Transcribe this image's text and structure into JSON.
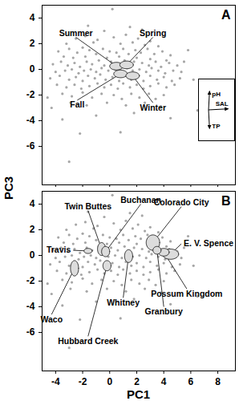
{
  "chart_data": [
    {
      "type": "scatter",
      "label": "A",
      "color": "#a6a6a6",
      "marker": "circle",
      "xlim": [
        -5,
        9.3
      ],
      "ylim": [
        -9,
        5
      ],
      "xticks": [
        -4,
        -2,
        0,
        2,
        4,
        6,
        8
      ],
      "yticks": [
        4,
        2,
        0,
        -2,
        -4,
        -6
      ],
      "tick_labels": "y",
      "points": [
        [
          -2.5,
          2.4
        ],
        [
          -1.8,
          2.6
        ],
        [
          -0.9,
          2.3
        ],
        [
          0.3,
          2.5
        ],
        [
          1.2,
          2.7
        ],
        [
          2.1,
          2.4
        ],
        [
          3.0,
          2.2
        ],
        [
          -3.2,
          2.0
        ],
        [
          -1.2,
          2.1
        ],
        [
          0.8,
          2.0
        ],
        [
          1.7,
          2.1
        ],
        [
          2.6,
          1.9
        ],
        [
          3.6,
          1.8
        ],
        [
          -3.8,
          1.4
        ],
        [
          -3.0,
          1.6
        ],
        [
          -2.4,
          1.3
        ],
        [
          -2.0,
          1.7
        ],
        [
          -1.5,
          1.5
        ],
        [
          -1.0,
          1.2
        ],
        [
          -0.5,
          1.6
        ],
        [
          0.0,
          1.4
        ],
        [
          0.5,
          1.3
        ],
        [
          1.0,
          1.6
        ],
        [
          1.4,
          1.2
        ],
        [
          1.9,
          1.5
        ],
        [
          2.3,
          1.3
        ],
        [
          2.8,
          1.6
        ],
        [
          3.3,
          1.2
        ],
        [
          3.9,
          1.4
        ],
        [
          4.5,
          1.1
        ],
        [
          -3.4,
          1.0
        ],
        [
          -2.7,
          0.9
        ],
        [
          -1.8,
          1.0
        ],
        [
          -0.2,
          0.9
        ],
        [
          0.7,
          1.0
        ],
        [
          2.0,
          0.9
        ],
        [
          3.0,
          0.8
        ],
        [
          4.2,
          0.7
        ],
        [
          -4.2,
          0.4
        ],
        [
          -3.6,
          0.6
        ],
        [
          -3.1,
          0.3
        ],
        [
          -2.6,
          0.5
        ],
        [
          -2.2,
          0.2
        ],
        [
          -1.7,
          0.6
        ],
        [
          -1.3,
          0.4
        ],
        [
          -0.8,
          0.7
        ],
        [
          -0.4,
          0.3
        ],
        [
          0.1,
          0.6
        ],
        [
          0.6,
          0.4
        ],
        [
          1.1,
          0.7
        ],
        [
          1.5,
          0.3
        ],
        [
          1.8,
          0.6
        ],
        [
          2.4,
          0.5
        ],
        [
          2.9,
          0.3
        ],
        [
          3.4,
          0.6
        ],
        [
          3.8,
          0.2
        ],
        [
          4.4,
          0.5
        ],
        [
          5.0,
          0.3
        ],
        [
          5.5,
          0.6
        ],
        [
          -4.0,
          -0.2
        ],
        [
          -3.3,
          -0.1
        ],
        [
          -2.8,
          0.0
        ],
        [
          -2.3,
          -0.3
        ],
        [
          -1.9,
          -0.1
        ],
        [
          -1.4,
          0.0
        ],
        [
          -1.0,
          -0.2
        ],
        [
          -0.6,
          0.1
        ],
        [
          -0.1,
          -0.1
        ],
        [
          0.4,
          0.0
        ],
        [
          0.9,
          -0.2
        ],
        [
          1.3,
          0.1
        ],
        [
          1.7,
          -0.1
        ],
        [
          2.2,
          0.0
        ],
        [
          2.7,
          -0.2
        ],
        [
          3.1,
          0.1
        ],
        [
          3.6,
          -0.1
        ],
        [
          4.1,
          -0.3
        ],
        [
          4.7,
          -0.1
        ],
        [
          5.3,
          -0.2
        ],
        [
          -4.4,
          -0.7
        ],
        [
          -3.7,
          -0.5
        ],
        [
          -3.0,
          -0.8
        ],
        [
          -2.5,
          -0.6
        ],
        [
          -2.0,
          -0.9
        ],
        [
          -1.6,
          -0.5
        ],
        [
          -1.1,
          -0.7
        ],
        [
          -0.7,
          -0.4
        ],
        [
          -0.3,
          -0.8
        ],
        [
          0.2,
          -0.6
        ],
        [
          0.7,
          -0.9
        ],
        [
          1.2,
          -0.5
        ],
        [
          1.6,
          -0.8
        ],
        [
          2.0,
          -0.6
        ],
        [
          2.5,
          -0.9
        ],
        [
          3.0,
          -0.5
        ],
        [
          3.5,
          -0.8
        ],
        [
          4.0,
          -0.6
        ],
        [
          4.6,
          -0.9
        ],
        [
          5.2,
          -0.7
        ],
        [
          -3.9,
          -1.2
        ],
        [
          -3.2,
          -1.4
        ],
        [
          -2.6,
          -1.2
        ],
        [
          -2.1,
          -1.5
        ],
        [
          -1.5,
          -1.3
        ],
        [
          -0.9,
          -1.1
        ],
        [
          -0.4,
          -1.4
        ],
        [
          0.1,
          -1.2
        ],
        [
          0.6,
          -1.5
        ],
        [
          1.0,
          -1.1
        ],
        [
          1.5,
          -1.4
        ],
        [
          2.0,
          -1.2
        ],
        [
          2.5,
          -1.5
        ],
        [
          3.0,
          -1.3
        ],
        [
          3.6,
          -1.1
        ],
        [
          4.2,
          -1.4
        ],
        [
          4.8,
          -1.2
        ],
        [
          -3.5,
          -1.9
        ],
        [
          -2.8,
          -2.1
        ],
        [
          -2.0,
          -1.8
        ],
        [
          -1.3,
          -2.2
        ],
        [
          -0.6,
          -1.9
        ],
        [
          0.3,
          -2.0
        ],
        [
          0.9,
          -2.3
        ],
        [
          1.6,
          -1.9
        ],
        [
          2.2,
          -2.2
        ],
        [
          2.9,
          -1.9
        ],
        [
          3.4,
          -2.3
        ],
        [
          4.0,
          -2.0
        ],
        [
          -2.9,
          -2.6
        ],
        [
          -1.7,
          -2.8
        ],
        [
          -0.2,
          -2.6
        ],
        [
          1.2,
          -2.8
        ],
        [
          2.6,
          -2.6
        ],
        [
          3.8,
          -2.9
        ],
        [
          0.2,
          4.7
        ],
        [
          -1.6,
          3.4
        ],
        [
          1.5,
          3.3
        ],
        [
          -0.4,
          3.0
        ],
        [
          2.4,
          3.1
        ],
        [
          -4.6,
          -2.2
        ],
        [
          -4.3,
          -3.0
        ],
        [
          0.8,
          -4.9
        ],
        [
          -2.2,
          -5.0
        ],
        [
          -3.0,
          -7.2
        ],
        [
          6.5,
          -3.2
        ],
        [
          6.2,
          -0.8
        ],
        [
          5.8,
          1.5
        ],
        [
          -1.0,
          -3.6
        ],
        [
          1.8,
          -3.4
        ],
        [
          4.5,
          -3.8
        ],
        [
          -3.5,
          -3.9
        ]
      ],
      "ellipses": [
        {
          "name": "Summer",
          "x": 0.5,
          "y": 0.25,
          "rx": 0.5,
          "ry": 0.3,
          "label_x": -2.5,
          "label_y": 2.5
        },
        {
          "name": "Spring",
          "x": 1.25,
          "y": 0.35,
          "rx": 0.5,
          "ry": 0.3,
          "label_x": 3.2,
          "label_y": 2.5
        },
        {
          "name": "Fall",
          "x": 0.8,
          "y": -0.35,
          "rx": 0.5,
          "ry": 0.3,
          "label_x": -2.4,
          "label_y": -2.4
        },
        {
          "name": "Winter",
          "x": 1.7,
          "y": -0.5,
          "rx": 0.5,
          "ry": 0.3,
          "label_x": 3.2,
          "label_y": -2.6
        }
      ],
      "loadings": [
        {
          "name": "pH",
          "x": 0.05,
          "y": 0.9
        },
        {
          "name": "SAL",
          "x": 0.95,
          "y": 0.05
        },
        {
          "name": "TP",
          "x": 0.05,
          "y": -0.9
        }
      ]
    },
    {
      "type": "scatter",
      "label": "B",
      "color": "#a6a6a6",
      "marker": "circle",
      "x_label": "PC1",
      "y_label": "PC3",
      "xlim": [
        -5,
        9.3
      ],
      "ylim": [
        -9,
        5
      ],
      "xticks": [
        -4,
        -2,
        0,
        2,
        4,
        6,
        8
      ],
      "yticks": [
        4,
        2,
        0,
        -2,
        -4,
        -6
      ],
      "points": [
        [
          -2.5,
          2.4
        ],
        [
          -1.8,
          2.6
        ],
        [
          -0.9,
          2.3
        ],
        [
          0.3,
          2.5
        ],
        [
          1.2,
          2.7
        ],
        [
          2.1,
          2.4
        ],
        [
          3.0,
          2.2
        ],
        [
          -3.2,
          2.0
        ],
        [
          -1.2,
          2.1
        ],
        [
          0.8,
          2.0
        ],
        [
          1.7,
          2.1
        ],
        [
          2.6,
          1.9
        ],
        [
          3.6,
          1.8
        ],
        [
          -3.8,
          1.4
        ],
        [
          -3.0,
          1.6
        ],
        [
          -2.4,
          1.3
        ],
        [
          -2.0,
          1.7
        ],
        [
          -1.5,
          1.5
        ],
        [
          -1.0,
          1.2
        ],
        [
          -0.5,
          1.6
        ],
        [
          0.0,
          1.4
        ],
        [
          0.5,
          1.3
        ],
        [
          1.0,
          1.6
        ],
        [
          1.4,
          1.2
        ],
        [
          1.9,
          1.5
        ],
        [
          2.3,
          1.3
        ],
        [
          2.8,
          1.6
        ],
        [
          3.3,
          1.2
        ],
        [
          3.9,
          1.4
        ],
        [
          4.5,
          1.1
        ],
        [
          -3.4,
          1.0
        ],
        [
          -2.7,
          0.9
        ],
        [
          -1.8,
          1.0
        ],
        [
          -0.2,
          0.9
        ],
        [
          0.7,
          1.0
        ],
        [
          2.0,
          0.9
        ],
        [
          3.0,
          0.8
        ],
        [
          4.2,
          0.7
        ],
        [
          -4.2,
          0.4
        ],
        [
          -3.6,
          0.6
        ],
        [
          -3.1,
          0.3
        ],
        [
          -2.6,
          0.5
        ],
        [
          -2.2,
          0.2
        ],
        [
          -1.7,
          0.6
        ],
        [
          -1.3,
          0.4
        ],
        [
          -0.8,
          0.7
        ],
        [
          -0.4,
          0.3
        ],
        [
          0.1,
          0.6
        ],
        [
          0.6,
          0.4
        ],
        [
          1.1,
          0.7
        ],
        [
          1.5,
          0.3
        ],
        [
          1.8,
          0.6
        ],
        [
          2.4,
          0.5
        ],
        [
          2.9,
          0.3
        ],
        [
          3.4,
          0.6
        ],
        [
          3.8,
          0.2
        ],
        [
          4.4,
          0.5
        ],
        [
          5.0,
          0.3
        ],
        [
          5.5,
          0.6
        ],
        [
          -4.0,
          -0.2
        ],
        [
          -3.3,
          -0.1
        ],
        [
          -2.8,
          0.0
        ],
        [
          -2.3,
          -0.3
        ],
        [
          -1.9,
          -0.1
        ],
        [
          -1.4,
          0.0
        ],
        [
          -1.0,
          -0.2
        ],
        [
          -0.6,
          0.1
        ],
        [
          -0.1,
          -0.1
        ],
        [
          0.4,
          0.0
        ],
        [
          0.9,
          -0.2
        ],
        [
          1.3,
          0.1
        ],
        [
          1.7,
          -0.1
        ],
        [
          2.2,
          0.0
        ],
        [
          2.7,
          -0.2
        ],
        [
          3.1,
          0.1
        ],
        [
          3.6,
          -0.1
        ],
        [
          4.1,
          -0.3
        ],
        [
          4.7,
          -0.1
        ],
        [
          5.3,
          -0.2
        ],
        [
          -4.4,
          -0.7
        ],
        [
          -3.7,
          -0.5
        ],
        [
          -3.0,
          -0.8
        ],
        [
          -2.5,
          -0.6
        ],
        [
          -2.0,
          -0.9
        ],
        [
          -1.6,
          -0.5
        ],
        [
          -1.1,
          -0.7
        ],
        [
          -0.7,
          -0.4
        ],
        [
          -0.3,
          -0.8
        ],
        [
          0.2,
          -0.6
        ],
        [
          0.7,
          -0.9
        ],
        [
          1.2,
          -0.5
        ],
        [
          1.6,
          -0.8
        ],
        [
          2.0,
          -0.6
        ],
        [
          2.5,
          -0.9
        ],
        [
          3.0,
          -0.5
        ],
        [
          3.5,
          -0.8
        ],
        [
          4.0,
          -0.6
        ],
        [
          4.6,
          -0.9
        ],
        [
          5.2,
          -0.7
        ],
        [
          -3.9,
          -1.2
        ],
        [
          -3.2,
          -1.4
        ],
        [
          -2.6,
          -1.2
        ],
        [
          -2.1,
          -1.5
        ],
        [
          -1.5,
          -1.3
        ],
        [
          -0.9,
          -1.1
        ],
        [
          -0.4,
          -1.4
        ],
        [
          0.1,
          -1.2
        ],
        [
          0.6,
          -1.5
        ],
        [
          1.0,
          -1.1
        ],
        [
          1.5,
          -1.4
        ],
        [
          2.0,
          -1.2
        ],
        [
          2.5,
          -1.5
        ],
        [
          3.0,
          -1.3
        ],
        [
          3.6,
          -1.1
        ],
        [
          4.2,
          -1.4
        ],
        [
          4.8,
          -1.2
        ],
        [
          -3.5,
          -1.9
        ],
        [
          -2.8,
          -2.1
        ],
        [
          -2.0,
          -1.8
        ],
        [
          -1.3,
          -2.2
        ],
        [
          -0.6,
          -1.9
        ],
        [
          0.3,
          -2.0
        ],
        [
          0.9,
          -2.3
        ],
        [
          1.6,
          -1.9
        ],
        [
          2.2,
          -2.2
        ],
        [
          2.9,
          -1.9
        ],
        [
          3.4,
          -2.3
        ],
        [
          4.0,
          -2.0
        ],
        [
          -2.9,
          -2.6
        ],
        [
          -1.7,
          -2.8
        ],
        [
          -0.2,
          -2.6
        ],
        [
          1.2,
          -2.8
        ],
        [
          2.6,
          -2.6
        ],
        [
          3.8,
          -2.9
        ],
        [
          0.2,
          4.7
        ],
        [
          -1.6,
          3.4
        ],
        [
          1.5,
          3.3
        ],
        [
          -0.4,
          3.0
        ],
        [
          2.4,
          3.1
        ],
        [
          -4.6,
          -2.2
        ],
        [
          -4.3,
          -3.0
        ],
        [
          0.8,
          -4.9
        ],
        [
          -2.2,
          -5.0
        ],
        [
          -3.0,
          -7.2
        ],
        [
          6.5,
          -3.2
        ],
        [
          6.2,
          -0.8
        ],
        [
          5.8,
          1.5
        ],
        [
          -1.0,
          -3.6
        ],
        [
          1.8,
          -3.4
        ],
        [
          4.5,
          -3.8
        ],
        [
          -3.5,
          -3.9
        ]
      ],
      "ellipses": [
        {
          "name": "Twin Buttes",
          "x": -0.6,
          "y": 0.5,
          "rx": 0.3,
          "ry": 0.5,
          "label_x": -1.6,
          "label_y": 3.5
        },
        {
          "name": "Buchanan",
          "x": -0.3,
          "y": 0.3,
          "rx": 0.3,
          "ry": 0.4,
          "label_x": 2.3,
          "label_y": 4.0
        },
        {
          "name": "Travis",
          "x": -1.6,
          "y": 0.35,
          "rx": 0.3,
          "ry": 0.2,
          "label_x": -2.7,
          "label_y": 0.4
        },
        {
          "name": "Waco",
          "x": -2.6,
          "y": -1.0,
          "rx": 0.3,
          "ry": 0.6,
          "label_x": -4.3,
          "label_y": -4.6
        },
        {
          "name": "Hubbard Creek",
          "x": -0.2,
          "y": -0.8,
          "rx": 0.3,
          "ry": 0.4,
          "label_x": -1.6,
          "label_y": -6.3
        },
        {
          "name": "Colorado City",
          "x": 3.2,
          "y": 1.0,
          "rx": 0.5,
          "ry": 0.6,
          "label_x": 5.3,
          "label_y": 3.8
        },
        {
          "name": "E. V. Spence",
          "x": 4.5,
          "y": 0.1,
          "rx": 0.6,
          "ry": 0.4,
          "label_x": 5.3,
          "label_y": 0.9
        },
        {
          "name": "Possum Kingdom",
          "x": 4.0,
          "y": 0.25,
          "rx": 0.4,
          "ry": 0.3,
          "label_x": 5.7,
          "label_y": -2.6
        },
        {
          "name": "Granbury",
          "x": 3.5,
          "y": 0.4,
          "rx": 0.3,
          "ry": 0.3,
          "label_x": 4.0,
          "label_y": -4.0
        },
        {
          "name": "Whitney",
          "x": 1.4,
          "y": -0.05,
          "rx": 0.3,
          "ry": 0.5,
          "label_x": 1.0,
          "label_y": -3.3
        }
      ]
    }
  ]
}
